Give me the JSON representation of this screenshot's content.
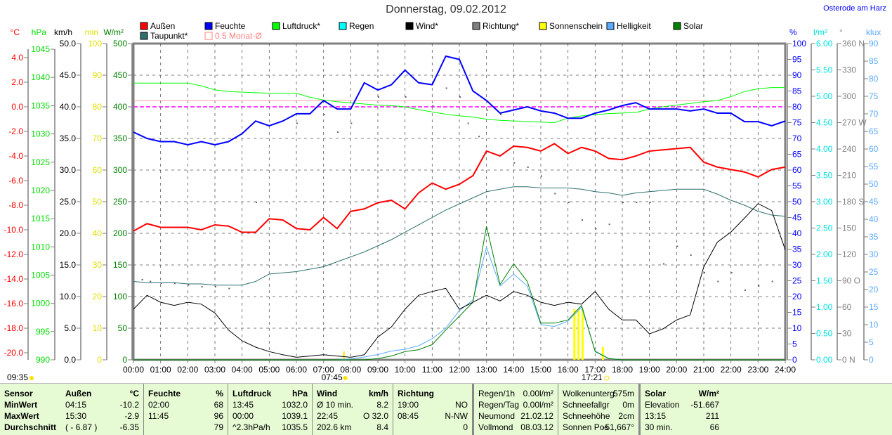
{
  "title": "Donnerstag, 09.02.2012",
  "station": "Osterode am Harz",
  "chart_data": {
    "type": "line",
    "title": "Donnerstag, 09.02.2012",
    "x_range_hours": [
      0,
      24
    ],
    "x_ticks": [
      "00:00",
      "01:00",
      "02:00",
      "03:00",
      "04:00",
      "05:00",
      "06:00",
      "07:00",
      "08:00",
      "09:00",
      "10:00",
      "11:00",
      "12:00",
      "13:00",
      "14:00",
      "15:00",
      "16:00",
      "17:00",
      "18:00",
      "19:00",
      "20:00",
      "21:00",
      "22:00",
      "23:00",
      "24:00"
    ],
    "annotations": {
      "time_now": "09:35",
      "sunrise": "07:45",
      "sunset": "17:21",
      "sunrise_hour": 7.75,
      "sunset_hour": 17.35
    },
    "legend": [
      {
        "label": "Außen",
        "color": "#ff0000"
      },
      {
        "label": "Feuchte",
        "color": "#0000ff"
      },
      {
        "label": "Luftdruck*",
        "color": "#00ff00"
      },
      {
        "label": "Regen",
        "color": "#00ffff"
      },
      {
        "label": "Wind*",
        "color": "#000000"
      },
      {
        "label": "Richtung*",
        "color": "#808080"
      },
      {
        "label": "Sonnenschein",
        "color": "#ffff00"
      },
      {
        "label": "Helligkeit",
        "color": "#5aaaff"
      },
      {
        "label": "Solar",
        "color": "#008000"
      },
      {
        "label": "Taupunkt*",
        "color": "#2f6f6f"
      },
      {
        "label": "0.5 Monat-Ø",
        "color": "#ff8080"
      }
    ],
    "axes": {
      "temp": {
        "unit": "°C",
        "color": "#ff0000",
        "min": -20.57,
        "max": 5.14,
        "labels": [
          "4.0",
          "2.0",
          "0.0",
          "-2.0",
          "-4.0",
          "-6.0",
          "-8.0",
          "-10.0",
          "-12.0",
          "-14.0",
          "-16.0",
          "-18.0",
          "-20.0"
        ]
      },
      "press": {
        "unit": "hPa",
        "color": "#00dd00",
        "min": 990,
        "max": 1046,
        "labels": [
          "1045",
          "1040",
          "1035",
          "1030",
          "1025",
          "1020",
          "1015",
          "1010",
          "1005",
          "1000",
          "995",
          "990"
        ]
      },
      "wind": {
        "unit": "km/h",
        "color": "#000000",
        "min": 0,
        "max": 50,
        "labels": [
          "50.0",
          "45.0",
          "40.0",
          "35.0",
          "30.0",
          "25.0",
          "20.0",
          "15.0",
          "10.0",
          "5.0",
          "0.0"
        ]
      },
      "sun": {
        "unit": "min",
        "color": "#e0e000",
        "min": 0,
        "max": 100,
        "labels": [
          "100",
          "90",
          "80",
          "70",
          "60",
          "50",
          "40",
          "30",
          "20",
          "10",
          "0"
        ]
      },
      "solar": {
        "unit": "W/m²",
        "color": "#008000",
        "min": 0,
        "max": 500,
        "labels": [
          "500",
          "450",
          "400",
          "350",
          "300",
          "250",
          "200",
          "150",
          "100",
          "50",
          "0"
        ]
      },
      "hum": {
        "unit": "%",
        "color": "#0000ff",
        "min": 0,
        "max": 100,
        "labels": [
          "100",
          "95",
          "90",
          "85",
          "80",
          "75",
          "70",
          "65",
          "60",
          "55",
          "50",
          "45",
          "40",
          "35",
          "30",
          "25",
          "20",
          "15",
          "10",
          "5",
          "0"
        ]
      },
      "rain": {
        "unit": "l/m²",
        "color": "#00e0e0",
        "min": 0,
        "max": 6,
        "labels": [
          "6.00",
          "5.50",
          "5.00",
          "4.50",
          "4.00",
          "3.50",
          "3.00",
          "2.50",
          "2.00",
          "1.50",
          "1.00",
          "0.50",
          "0.00"
        ]
      },
      "dir": {
        "unit": "°",
        "color": "#808080",
        "min": 0,
        "max": 360,
        "labels": [
          "360 N",
          "330",
          "300",
          "270 W",
          "240",
          "210",
          "180 S",
          "150",
          "120",
          "90 O",
          "60",
          "30",
          "0 N"
        ]
      },
      "lux": {
        "unit": "klux",
        "color": "#5aaaff",
        "min": 0,
        "max": 90,
        "labels": [
          "90",
          "85",
          "80",
          "75",
          "70",
          "65",
          "60",
          "55",
          "50",
          "45",
          "40",
          "35",
          "30",
          "25",
          "20",
          "15",
          "10",
          "5",
          "0"
        ]
      }
    },
    "reference_lines": [
      {
        "name": "zero-celsius",
        "axis": "temp",
        "value": 0.0,
        "color": "#ff00ff"
      },
      {
        "name": "half-month-avg",
        "axis": "temp",
        "value": 0.5,
        "color": "#ff8080"
      }
    ],
    "half_hour_x": [
      0,
      0.5,
      1,
      1.5,
      2,
      2.5,
      3,
      3.5,
      4,
      4.5,
      5,
      5.5,
      6,
      6.5,
      7,
      7.5,
      8,
      8.5,
      9,
      9.5,
      10,
      10.5,
      11,
      11.5,
      12,
      12.5,
      13,
      13.5,
      14,
      14.5,
      15,
      15.5,
      16,
      16.5,
      17,
      17.5,
      18,
      18.5,
      19,
      19.5,
      20,
      20.5,
      21,
      21.5,
      22,
      22.5,
      23,
      23.5,
      24
    ],
    "series": [
      {
        "name": "Außen",
        "axis": "temp",
        "color": "#ff0000",
        "width": 2,
        "values": [
          -10.1,
          -9.5,
          -9.8,
          -9.8,
          -9.8,
          -10.0,
          -9.6,
          -9.7,
          -10.2,
          -10.2,
          -9.1,
          -9.2,
          -9.9,
          -10.0,
          -9.0,
          -9.9,
          -8.5,
          -8.3,
          -7.8,
          -7.6,
          -8.3,
          -7.0,
          -6.2,
          -6.7,
          -6.3,
          -5.6,
          -3.6,
          -4.0,
          -3.2,
          -3.3,
          -3.6,
          -3.0,
          -3.8,
          -3.3,
          -3.6,
          -4.2,
          -4.3,
          -4.0,
          -3.6,
          -3.5,
          -3.4,
          -3.3,
          -4.5,
          -4.9,
          -5.1,
          -5.3,
          -5.7,
          -5.1,
          -4.9
        ]
      },
      {
        "name": "Feuchte",
        "axis": "hum",
        "color": "#0000ff",
        "width": 2,
        "values": [
          72,
          70,
          69,
          69,
          68,
          69,
          68,
          69,
          71.5,
          75.5,
          74,
          75.5,
          77.8,
          77.8,
          82,
          79.3,
          79.3,
          87.6,
          85.3,
          87,
          91.6,
          87.6,
          87,
          96,
          95,
          85,
          82,
          78,
          79,
          80,
          78.7,
          78,
          76.4,
          76.4,
          78,
          79,
          80.4,
          81.3,
          79.3,
          79.3,
          79.3,
          78.7,
          79.3,
          78,
          78,
          75.3,
          75.3,
          74,
          75.5
        ]
      },
      {
        "name": "Luftdruck",
        "axis": "press",
        "color": "#00ff00",
        "width": 1,
        "values": [
          1039.0,
          1039.0,
          1039.0,
          1039.0,
          1039.0,
          1038.5,
          1037.8,
          1037.5,
          1037.4,
          1037.3,
          1037.2,
          1037.2,
          1037.2,
          1036.5,
          1036.0,
          1035.7,
          1035.5,
          1035.3,
          1035.1,
          1035.0,
          1034.8,
          1034.3,
          1033.9,
          1033.5,
          1033.2,
          1033.0,
          1032.6,
          1032.4,
          1032.3,
          1032.2,
          1032.1,
          1032.0,
          1032.8,
          1033.2,
          1033.4,
          1033.6,
          1033.7,
          1033.8,
          1034.4,
          1034.8,
          1035.1,
          1035.4,
          1035.7,
          1035.9,
          1036.6,
          1037.5,
          1038.0,
          1038.2,
          1038.2
        ]
      },
      {
        "name": "Taupunkt",
        "axis": "temp",
        "color": "#2f6f6f",
        "width": 1,
        "values": [
          -14.2,
          -14.3,
          -14.3,
          -14.3,
          -14.4,
          -14.4,
          -14.5,
          -14.5,
          -14.5,
          -14.2,
          -13.6,
          -13.5,
          -13.4,
          -13.2,
          -13.0,
          -12.6,
          -12.2,
          -11.8,
          -11.3,
          -10.8,
          -10.2,
          -9.6,
          -9.0,
          -8.4,
          -7.9,
          -7.4,
          -6.9,
          -6.7,
          -6.5,
          -6.5,
          -6.6,
          -6.6,
          -6.6,
          -6.7,
          -6.9,
          -7.0,
          -7.2,
          -7.0,
          -6.9,
          -6.8,
          -6.7,
          -6.7,
          -6.7,
          -7.1,
          -7.6,
          -8.0,
          -8.5,
          -8.8,
          -8.9
        ]
      },
      {
        "name": "Wind",
        "axis": "wind",
        "color": "#000000",
        "width": 1,
        "values": [
          8.0,
          10.2,
          9.1,
          8.6,
          9.1,
          8.8,
          7.4,
          4.7,
          3.0,
          2.0,
          1.3,
          0.8,
          0.4,
          0.6,
          0.8,
          0.6,
          0.4,
          0.8,
          3.6,
          5.2,
          8.0,
          10.2,
          10.8,
          11.3,
          8.0,
          9.1,
          10.2,
          9.3,
          10.8,
          10.2,
          9.1,
          8.6,
          9.1,
          8.8,
          10.8,
          8.0,
          6.3,
          6.3,
          4.1,
          4.9,
          6.3,
          7.1,
          14.7,
          18.6,
          20.2,
          22.4,
          24.7,
          23.6,
          17.4
        ]
      },
      {
        "name": "Solar",
        "axis": "solar",
        "color": "#008000",
        "width": 1,
        "values": [
          0,
          0,
          0,
          0,
          0,
          0,
          0,
          0,
          0,
          0,
          0,
          0,
          0,
          0,
          0,
          0,
          0,
          0,
          2,
          6,
          13,
          16,
          24,
          47,
          69,
          91,
          211,
          119,
          152,
          124,
          58,
          58,
          63,
          86,
          13,
          2,
          0,
          0,
          0,
          0,
          0,
          0,
          0,
          0,
          0,
          0,
          0,
          0,
          0
        ]
      },
      {
        "name": "Helligkeit",
        "axis": "lux",
        "color": "#5aaaff",
        "width": 1,
        "values": [
          0,
          0,
          0,
          0,
          0,
          0,
          0,
          0,
          0,
          0,
          0,
          0,
          0,
          0,
          0,
          0,
          0.3,
          0.8,
          1.5,
          2.5,
          3,
          4,
          6,
          9,
          14,
          17,
          32,
          21,
          24.4,
          21,
          10,
          9.5,
          11,
          15,
          2.5,
          0.4,
          0,
          0,
          0,
          0,
          0,
          0,
          0,
          0,
          0,
          0,
          0,
          0,
          0
        ]
      }
    ],
    "sunshine_minutes": [
      {
        "hour": 16.25,
        "value": 16
      },
      {
        "hour": 16.4,
        "value": 16
      },
      {
        "hour": 16.55,
        "value": 16
      },
      {
        "hour": 17.3,
        "value": 4
      }
    ],
    "direction_points": {
      "axis": "dir",
      "color": "#606060",
      "hours": [
        0.3,
        0.6,
        1.0,
        1.5,
        2.0,
        2.5,
        3.0,
        3.5,
        4.5,
        6.0,
        7.0,
        7.5,
        8.0,
        9.0,
        10.0,
        11.0,
        11.5,
        12.0,
        12.3,
        12.7,
        13.0,
        13.5,
        14.0,
        14.5,
        15.0,
        15.5,
        16.0,
        16.5,
        17.0,
        17.5,
        18.0,
        18.5,
        19.0,
        19.5,
        20.0,
        20.5,
        21.0,
        21.5,
        22.0,
        22.5,
        23.0,
        23.5
      ],
      "values": [
        92,
        90,
        88,
        88,
        86,
        84,
        84,
        82,
        180,
        270,
        280,
        260,
        270,
        300,
        300,
        290,
        310,
        300,
        270,
        255,
        285,
        280,
        225,
        220,
        210,
        190,
        180,
        160,
        150,
        155,
        180,
        180,
        180,
        110,
        130,
        120,
        100,
        90,
        100,
        80,
        85,
        90
      ]
    }
  },
  "table": {
    "columns": [
      {
        "bold_first": true,
        "rows": [
          [
            "Sensor",
            ""
          ],
          [
            "MinWert",
            ""
          ],
          [
            "MaxWert",
            ""
          ],
          [
            "Durchschnitt",
            ""
          ]
        ]
      },
      {
        "bold_first": true,
        "rows": [
          [
            "Außen",
            "°C"
          ],
          [
            "04:15",
            "-10.2"
          ],
          [
            "15:30",
            "-2.9"
          ],
          [
            "( - 6.87 )",
            "-6.35"
          ]
        ]
      },
      {
        "bold_first": true,
        "rows": [
          [
            "Feuchte",
            "%"
          ],
          [
            "02:00",
            "68"
          ],
          [
            "11:45",
            "96"
          ],
          [
            "",
            "79"
          ]
        ]
      },
      {
        "bold_first": true,
        "rows": [
          [
            "Luftdruck",
            "hPa"
          ],
          [
            "13:45",
            "1032.0"
          ],
          [
            "00:00",
            "1039.1"
          ],
          [
            "^2.3hPa/h",
            "1035.5"
          ]
        ]
      },
      {
        "bold_first": true,
        "rows": [
          [
            "Wind",
            "km/h"
          ],
          [
            "Ø 10 min.",
            "8.2"
          ],
          [
            "22:45",
            "O 32.0"
          ],
          [
            "202.6 km",
            "8.4"
          ]
        ]
      },
      {
        "bold_first": true,
        "rows": [
          [
            "Richtung",
            ""
          ],
          [
            "19:00",
            "NO"
          ],
          [
            "08:45",
            "N-NW"
          ],
          [
            "",
            "0"
          ]
        ]
      },
      {
        "bold_first": false,
        "rows": [
          [
            "Regen/1h",
            "0.00l/m²"
          ],
          [
            "Regen/Tag",
            "0.00l/m²"
          ],
          [
            "Neumond",
            "21.02.12"
          ],
          [
            "Vollmond",
            "08.03.12"
          ]
        ]
      },
      {
        "bold_first": false,
        "rows": [
          [
            "Wolkenunterg",
            "575m"
          ],
          [
            "Schneefallgr",
            "0m"
          ],
          [
            "Schneehöhe",
            "2cm"
          ],
          [
            "Sonnen Pos",
            "-51,667°"
          ]
        ]
      },
      {
        "bold_first": true,
        "rows": [
          [
            "Solar",
            "W/m²"
          ],
          [
            "Elevation",
            "-51.667"
          ],
          [
            "13:15",
            "211"
          ],
          [
            "30 min.",
            "66"
          ]
        ]
      }
    ]
  }
}
